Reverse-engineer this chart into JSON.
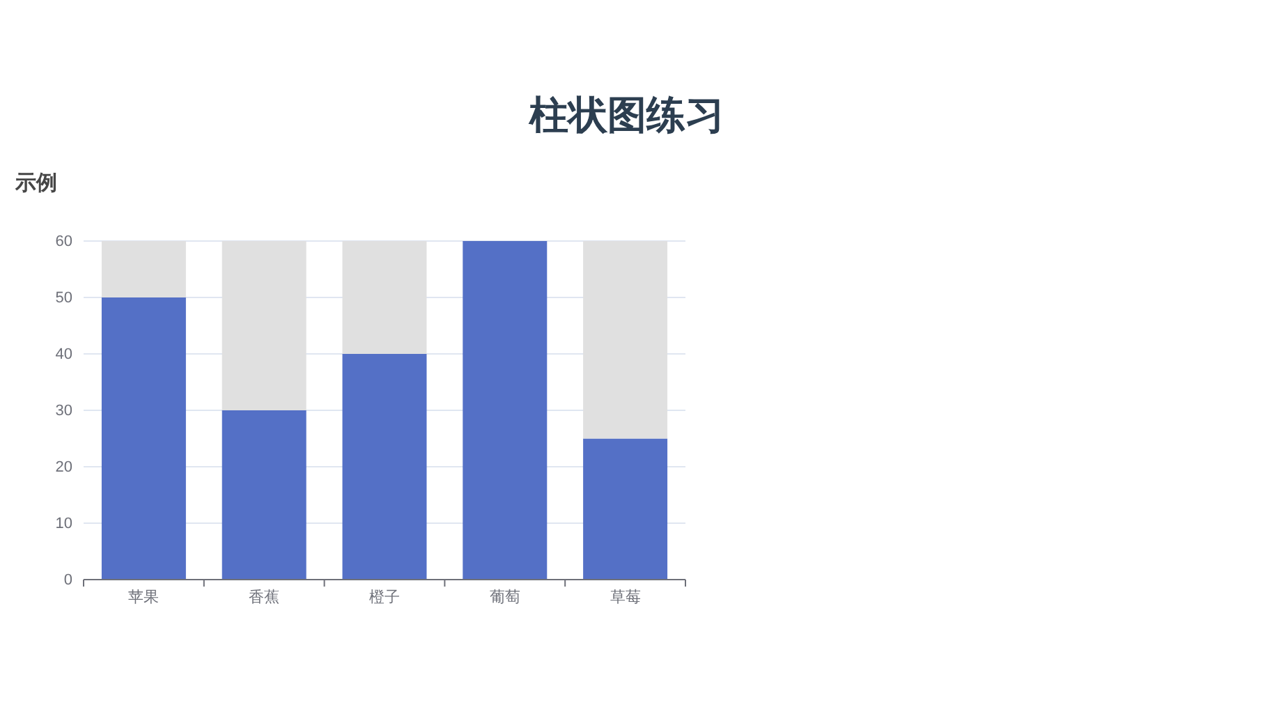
{
  "chart_data": {
    "type": "bar",
    "title": "柱状图练习",
    "subtitle": "示例",
    "categories": [
      "苹果",
      "香蕉",
      "橙子",
      "葡萄",
      "草莓"
    ],
    "stacked": true,
    "series": [
      {
        "color": "#5470c6",
        "values": [
          50,
          30,
          40,
          60,
          25
        ]
      },
      {
        "color": "#e0e0e0",
        "values": [
          10,
          30,
          20,
          0,
          35
        ]
      }
    ],
    "ylim": [
      0,
      60
    ],
    "yticks": [
      0,
      10,
      20,
      30,
      40,
      50,
      60
    ],
    "grid": "y"
  }
}
